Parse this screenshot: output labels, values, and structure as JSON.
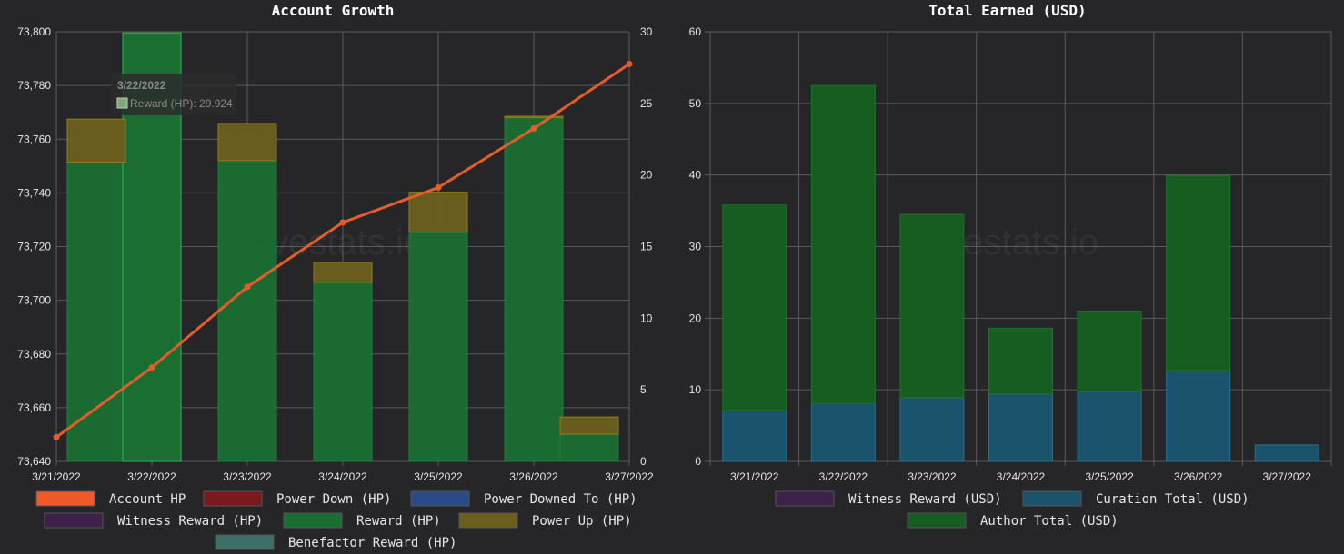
{
  "watermark": "hivestats.io",
  "colors": {
    "background": "#262629",
    "grid": "#5a5a5e",
    "tick": "#e6e6e6",
    "title": "#ffffff",
    "legend_text": "#e6e6e6"
  },
  "chart_data": [
    {
      "type": "bar+line",
      "title": "Account Growth",
      "categories": [
        "3/21/2022",
        "3/22/2022",
        "3/23/2022",
        "3/24/2022",
        "3/25/2022",
        "3/26/2022",
        "3/27/2022"
      ],
      "y_left": {
        "min": 73640,
        "max": 73800,
        "ticks": [
          "73,640",
          "73,660",
          "73,680",
          "73,700",
          "73,720",
          "73,740",
          "73,760",
          "73,780",
          "73,800"
        ]
      },
      "y_right": {
        "min": 0,
        "max": 30,
        "ticks": [
          "0",
          "5",
          "10",
          "15",
          "20",
          "25",
          "30"
        ]
      },
      "bar_series": [
        {
          "name": "Reward (HP)",
          "color": "#1a6e32",
          "values": [
            20.9,
            29.924,
            21.0,
            12.5,
            16.0,
            24.0,
            1.9
          ]
        },
        {
          "name": "Power Up (HP)",
          "color": "#6b5f1e",
          "values": [
            3.0,
            0,
            2.6,
            1.4,
            2.8,
            0.1,
            1.2
          ]
        }
      ],
      "line_series": {
        "name": "Account HP",
        "color": "#e35d2d",
        "values": [
          73649,
          73675,
          73705,
          73729,
          73742,
          73764,
          73788
        ]
      },
      "legend": [
        {
          "label": "Account HP",
          "color": "#f05a28"
        },
        {
          "label": "Power Down (HP)",
          "color": "#7a1a1f"
        },
        {
          "label": "Power Downed To (HP)",
          "color": "#294a86"
        },
        {
          "label": "Witness Reward (HP)",
          "color": "#3d2148"
        },
        {
          "label": "Reward (HP)",
          "color": "#1a6e32"
        },
        {
          "label": "Power Up (HP)",
          "color": "#6b5f1e"
        },
        {
          "label": "Benefactor Reward (HP)",
          "color": "#3e6e68"
        }
      ],
      "tooltip": {
        "title": "3/22/2022",
        "text": "Reward (HP): 29.924",
        "color": "#1a6e32"
      }
    },
    {
      "type": "bar",
      "stacked": true,
      "title": "Total Earned (USD)",
      "categories": [
        "3/21/2022",
        "3/22/2022",
        "3/23/2022",
        "3/24/2022",
        "3/25/2022",
        "3/26/2022",
        "3/27/2022"
      ],
      "y": {
        "min": 0,
        "max": 60,
        "ticks": [
          "0",
          "10",
          "20",
          "30",
          "40",
          "50",
          "60"
        ]
      },
      "series": [
        {
          "name": "Curation Total (USD)",
          "color": "#1c536c",
          "values": [
            7.1,
            8.1,
            8.9,
            9.4,
            9.7,
            12.7,
            2.3
          ]
        },
        {
          "name": "Author Total (USD)",
          "color": "#175c20",
          "values": [
            28.7,
            44.4,
            25.6,
            9.2,
            11.3,
            27.2,
            0
          ]
        }
      ],
      "legend": [
        {
          "label": "Witness Reward (USD)",
          "color": "#3d2148"
        },
        {
          "label": "Curation Total (USD)",
          "color": "#1c536c"
        },
        {
          "label": "Author Total (USD)",
          "color": "#175c20"
        }
      ]
    }
  ]
}
